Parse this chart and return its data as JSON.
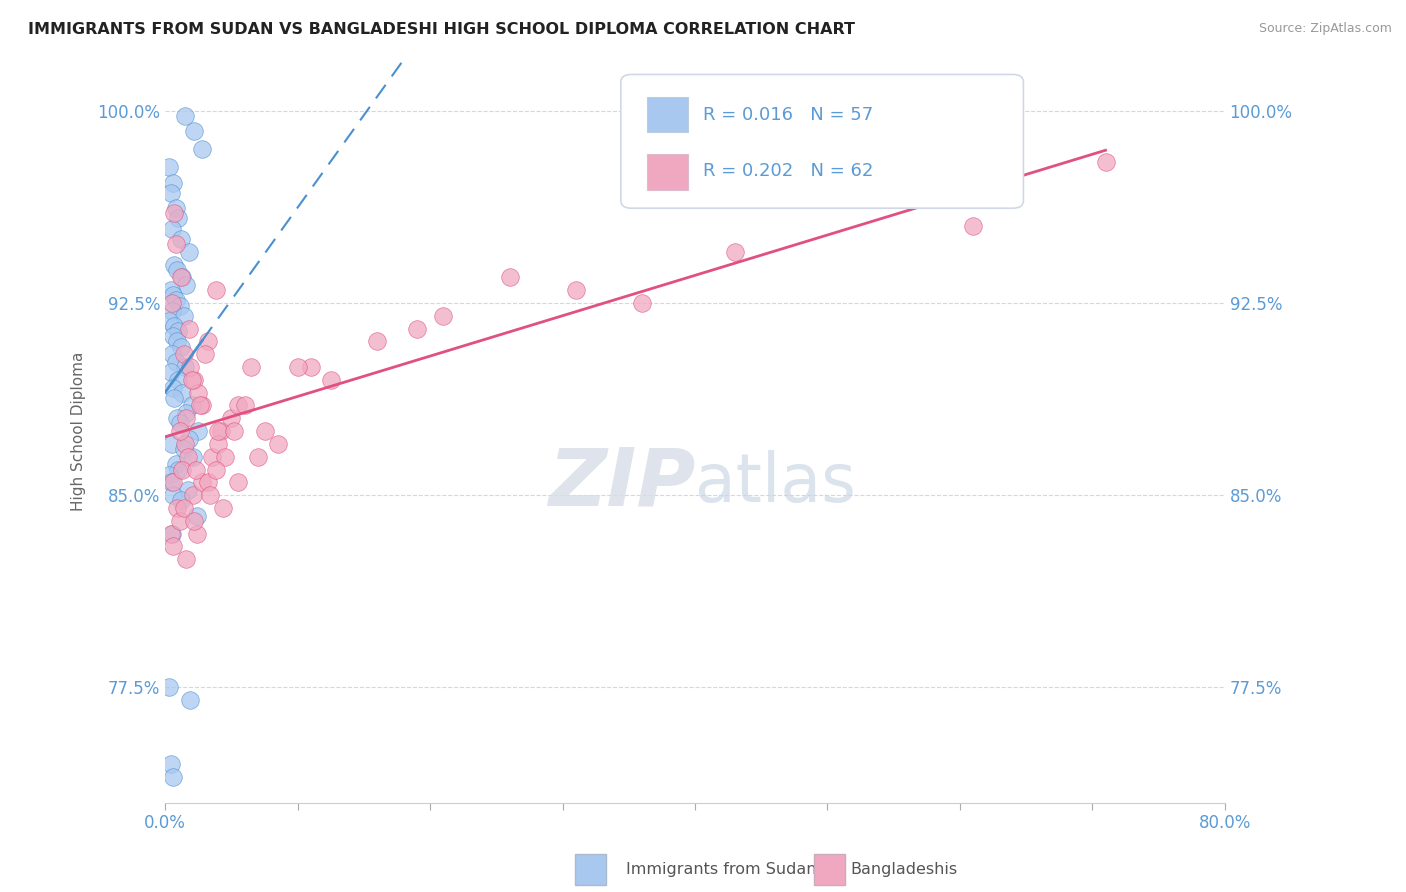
{
  "title": "IMMIGRANTS FROM SUDAN VS BANGLADESHI HIGH SCHOOL DIPLOMA CORRELATION CHART",
  "source": "Source: ZipAtlas.com",
  "ylabel": "High School Diploma",
  "watermark_zip": "ZIP",
  "watermark_atlas": "atlas",
  "legend_r1": "R = 0.016",
  "legend_n1": "N = 57",
  "legend_r2": "R = 0.202",
  "legend_n2": "N = 62",
  "xlim": [
    0.0,
    80.0
  ],
  "ylim": [
    73.0,
    102.0
  ],
  "yticks": [
    77.5,
    85.0,
    92.5,
    100.0
  ],
  "yticklabels": [
    "77.5%",
    "85.0%",
    "92.5%",
    "100.0%"
  ],
  "blue_color": "#a8c8f0",
  "pink_color": "#f0a8c0",
  "trend_blue_color": "#4a90d0",
  "trend_pink_color": "#e05080",
  "title_color": "#222222",
  "axis_label_color": "#666666",
  "tick_color": "#5b9bd5",
  "grid_color": "#d0d8e8",
  "background_color": "#ffffff",
  "blue_scatter_x": [
    1.5,
    2.2,
    2.8,
    0.3,
    0.6,
    0.4,
    0.8,
    1.0,
    0.5,
    1.2,
    1.8,
    0.7,
    0.9,
    1.3,
    1.6,
    0.4,
    0.6,
    0.8,
    1.1,
    0.5,
    1.4,
    0.3,
    0.7,
    1.0,
    0.6,
    0.9,
    1.2,
    0.5,
    0.8,
    1.5,
    0.4,
    1.0,
    0.6,
    1.3,
    0.7,
    2.0,
    1.6,
    0.9,
    1.1,
    2.5,
    1.8,
    0.5,
    1.4,
    2.1,
    0.8,
    1.0,
    0.3,
    0.4,
    1.7,
    0.6,
    1.2,
    2.4,
    0.5,
    0.3,
    1.9,
    0.4,
    0.6
  ],
  "blue_scatter_y": [
    99.8,
    99.2,
    98.5,
    97.8,
    97.2,
    96.8,
    96.2,
    95.8,
    95.4,
    95.0,
    94.5,
    94.0,
    93.8,
    93.5,
    93.2,
    93.0,
    92.8,
    92.6,
    92.4,
    92.2,
    92.0,
    91.8,
    91.6,
    91.4,
    91.2,
    91.0,
    90.8,
    90.5,
    90.2,
    90.0,
    89.8,
    89.5,
    89.2,
    89.0,
    88.8,
    88.5,
    88.2,
    88.0,
    87.8,
    87.5,
    87.2,
    87.0,
    86.8,
    86.5,
    86.2,
    86.0,
    85.8,
    85.5,
    85.2,
    85.0,
    84.8,
    84.2,
    83.5,
    77.5,
    77.0,
    74.5,
    74.0
  ],
  "pink_scatter_x": [
    0.5,
    0.8,
    1.2,
    0.6,
    1.8,
    1.4,
    2.2,
    1.6,
    0.7,
    2.8,
    1.5,
    3.2,
    0.9,
    1.9,
    2.5,
    1.1,
    1.7,
    3.8,
    3.0,
    1.3,
    0.4,
    2.0,
    2.6,
    4.2,
    2.1,
    3.5,
    2.8,
    0.6,
    1.1,
    5.0,
    4.0,
    2.3,
    1.4,
    5.5,
    2.4,
    4.0,
    1.6,
    4.5,
    3.2,
    6.5,
    3.4,
    5.2,
    2.2,
    8.5,
    3.8,
    6.0,
    4.4,
    12.5,
    5.5,
    7.5,
    7.0,
    19.0,
    26.0,
    11.0,
    31.0,
    10.0,
    16.0,
    21.0,
    36.0,
    43.0,
    61.0,
    71.0
  ],
  "pink_scatter_y": [
    92.5,
    94.8,
    93.5,
    85.5,
    91.5,
    90.5,
    89.5,
    88.0,
    96.0,
    88.5,
    87.0,
    91.0,
    84.5,
    90.0,
    89.0,
    87.5,
    86.5,
    93.0,
    90.5,
    86.0,
    83.5,
    89.5,
    88.5,
    87.5,
    85.0,
    86.5,
    85.5,
    83.0,
    84.0,
    88.0,
    87.0,
    86.0,
    84.5,
    88.5,
    83.5,
    87.5,
    82.5,
    86.5,
    85.5,
    90.0,
    85.0,
    87.5,
    84.0,
    87.0,
    86.0,
    88.5,
    84.5,
    89.5,
    85.5,
    87.5,
    86.5,
    91.5,
    93.5,
    90.0,
    93.0,
    90.0,
    91.0,
    92.0,
    92.5,
    94.5,
    95.5,
    98.0
  ]
}
